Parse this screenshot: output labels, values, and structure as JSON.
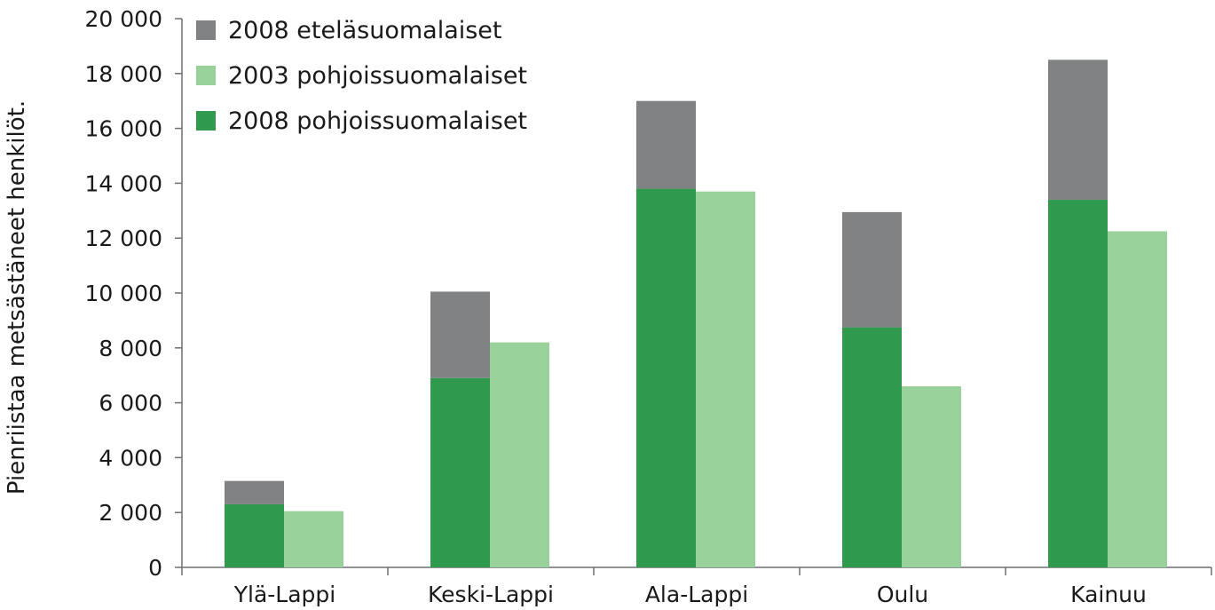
{
  "chart_data": {
    "type": "bar",
    "categories": [
      "Ylä-Lappi",
      "Keski-Lappi",
      "Ala-Lappi",
      "Oulu",
      "Kainuu"
    ],
    "series": [
      {
        "name": "2008 eteläsuomalaiset",
        "values": [
          850,
          3150,
          3200,
          4200,
          5100
        ],
        "color": "#808283",
        "stack": "2008"
      },
      {
        "name": "2003 pohjoissuomalaiset",
        "values": [
          2050,
          8200,
          13700,
          6600,
          12250
        ],
        "color": "#98d29a",
        "stack": "2003"
      },
      {
        "name": "2008 pohjoissuomalaiset",
        "values": [
          2300,
          6900,
          13800,
          8750,
          13400
        ],
        "color": "#2f994e",
        "stack": "2008"
      }
    ],
    "stack_order_2008": [
      "2008 pohjoissuomalaiset",
      "2008 eteläsuomalaiset"
    ],
    "legend_order": [
      "2008 eteläsuomalaiset",
      "2003 pohjoissuomalaiset",
      "2008 pohjoissuomalaiset"
    ],
    "legend_position": "top-left",
    "ylabel": "Pienriistaa metsästäneet henkilöt.",
    "xlabel": "",
    "title": "",
    "ylim": [
      0,
      20000
    ],
    "yticks": [
      0,
      2000,
      4000,
      6000,
      8000,
      10000,
      12000,
      14000,
      16000,
      18000,
      20000
    ],
    "ytick_labels": [
      "0",
      "2 000",
      "4 000",
      "6 000",
      "8 000",
      "10 000",
      "12 000",
      "14 000",
      "16 000",
      "18 000",
      "20 000"
    ],
    "grid": false
  }
}
